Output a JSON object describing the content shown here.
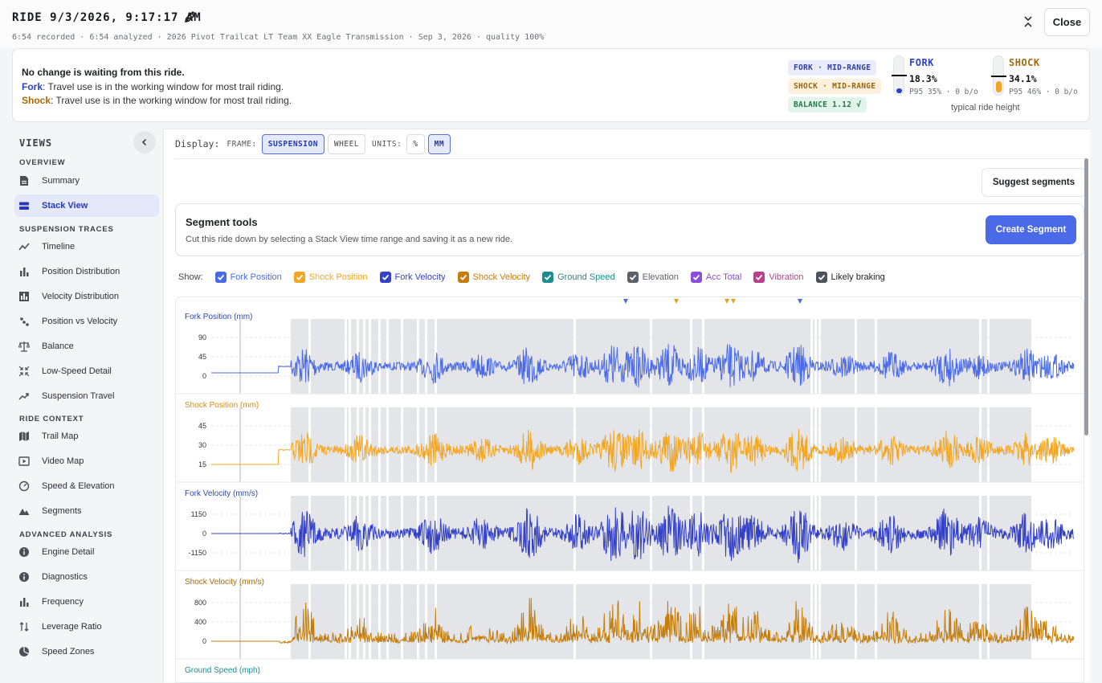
{
  "header": {
    "title": "RIDE 9/3/2026, 9:17:17 AM",
    "subline": "6:54 recorded · 6:54 analyzed · 2026 Pivot Trailcat LT Team XX Eagle Transmission · Sep 3, 2026 · quality 100%",
    "close_label": "Close"
  },
  "status": {
    "title": "No change is waiting from this ride.",
    "fork_label": "Fork",
    "fork_text": ": Travel use is in the working window for most trail riding.",
    "shock_label": "Shock",
    "shock_text": ": Travel use is in the working window for most trail riding.",
    "pill_fork": "FORK · MID-RANGE",
    "pill_shock": "SHOCK · MID-RANGE",
    "pill_balance": "BALANCE 1.12 √",
    "fork": {
      "name": "FORK",
      "value": "18.3%",
      "sub": "P95 35% · 0 b/o",
      "sag_fraction": 0.183
    },
    "shock": {
      "name": "SHOCK",
      "value": "34.1%",
      "sub": "P95 46% · 0 b/o",
      "sag_fraction": 0.341
    },
    "typical": "typical ride height",
    "colors": {
      "fork": "#2a42c8",
      "shock": "#a56a06"
    }
  },
  "sidebar": {
    "title": "VIEWS",
    "sections": {
      "overview": "OVERVIEW",
      "traces": "SUSPENSION TRACES",
      "context": "RIDE CONTEXT",
      "advanced": "ADVANCED ANALYSIS"
    },
    "items": {
      "summary": "Summary",
      "stack_view": "Stack View",
      "timeline": "Timeline",
      "position_distribution": "Position Distribution",
      "velocity_distribution": "Velocity Distribution",
      "position_vs_velocity": "Position vs Velocity",
      "balance": "Balance",
      "low_speed_detail": "Low-Speed Detail",
      "suspension_travel": "Suspension Travel",
      "trail_map": "Trail Map",
      "video_map": "Video Map",
      "speed_elevation": "Speed & Elevation",
      "segments": "Segments",
      "engine_detail": "Engine Detail",
      "diagnostics": "Diagnostics",
      "frequency": "Frequency",
      "leverage_ratio": "Leverage Ratio",
      "speed_zones": "Speed Zones"
    },
    "active": "stack_view"
  },
  "display": {
    "label": "Display:",
    "frame_label": "FRAME:",
    "frame_options": [
      "SUSPENSION",
      "WHEEL"
    ],
    "frame_selected": "SUSPENSION",
    "units_label": "UNITS:",
    "unit_options": [
      "%",
      "MM"
    ],
    "unit_selected": "MM"
  },
  "suggest_label": "Suggest segments",
  "segment_tools": {
    "title": "Segment tools",
    "desc": "Cut this ride down by selecting a Stack View time range and saving it as a new ride.",
    "create_label": "Create Segment"
  },
  "show": {
    "label": "Show:",
    "toggles": [
      {
        "label": "Fork Position",
        "color": "#4a6ae8",
        "checked": true
      },
      {
        "label": "Shock Position",
        "color": "#f2a623",
        "checked": true
      },
      {
        "label": "Fork Velocity",
        "color": "#3340c8",
        "checked": true
      },
      {
        "label": "Shock Velocity",
        "color": "#c47d0c",
        "checked": true
      },
      {
        "label": "Ground Speed",
        "color": "#1c8c8c",
        "checked": true
      },
      {
        "label": "Elevation",
        "color": "#5b616b",
        "checked": true
      },
      {
        "label": "Acc Total",
        "color": "#8a4ed8",
        "checked": true
      },
      {
        "label": "Vibration",
        "color": "#b8408c",
        "checked": true
      },
      {
        "label": "Likely braking",
        "color": "#4d535d",
        "checked": true
      }
    ]
  },
  "chart_data": [
    {
      "type": "line",
      "title": "Fork Position (mm)",
      "yticks": [
        "90",
        "45",
        "0"
      ],
      "color": "#4a6ae8"
    },
    {
      "type": "line",
      "title": "Shock Position (mm)",
      "yticks": [
        "45",
        "30",
        "15"
      ],
      "color": "#f2a623"
    },
    {
      "type": "line",
      "title": "Fork Velocity (mm/s)",
      "yticks": [
        "1150",
        "0",
        "-1150"
      ],
      "color": "#3340c8"
    },
    {
      "type": "line",
      "title": "Shock Velocity (mm/s)",
      "yticks": [
        "800",
        "400",
        "0"
      ],
      "color": "#c47d0c"
    },
    {
      "type": "line",
      "title": "Ground Speed (mph)",
      "yticks": [],
      "color": "#1c8c8c"
    }
  ]
}
